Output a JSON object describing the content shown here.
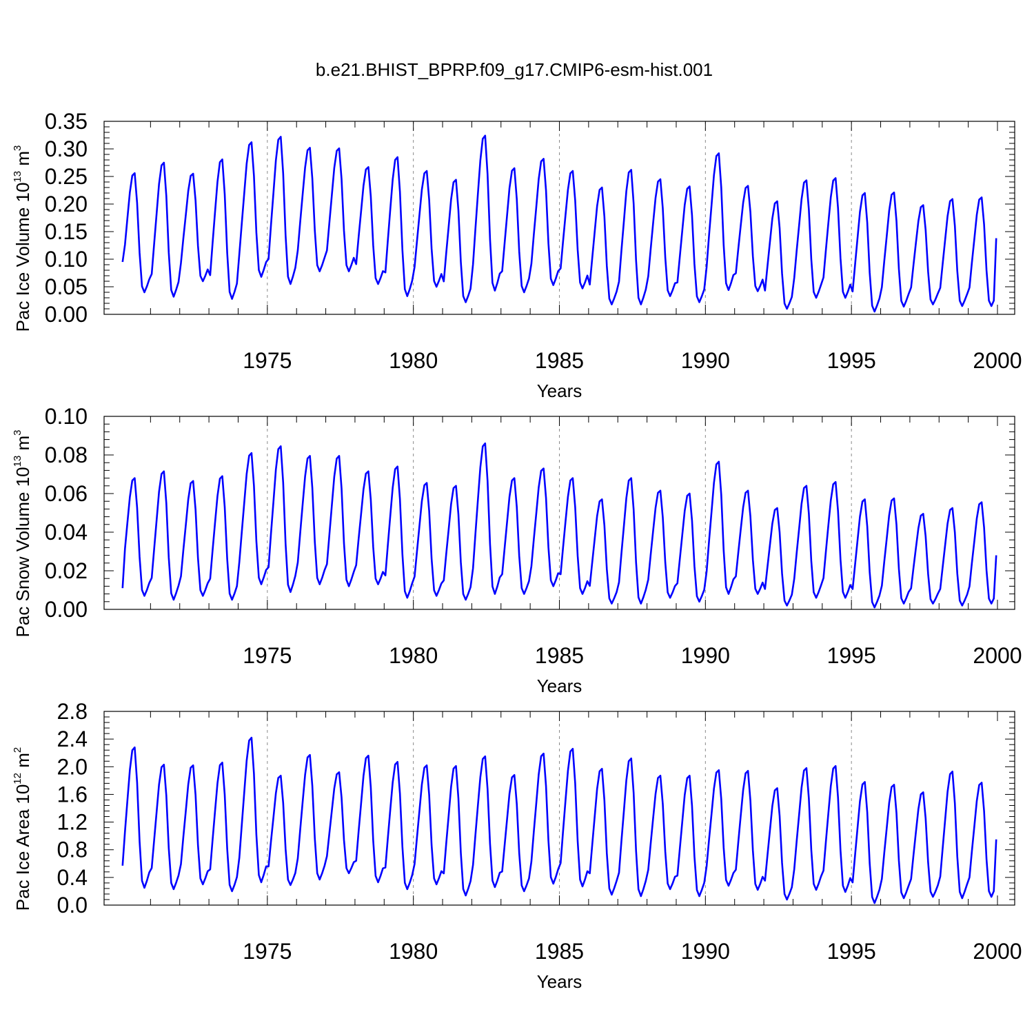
{
  "title": "b.e21.BHIST_BPRP.f09_g17.CMIP6-esm-hist.001",
  "chart_data": [
    {
      "type": "line",
      "ylabel_parts": [
        "Pac Ice Volume 10",
        "13",
        " m",
        "3"
      ],
      "xlabel": "Years",
      "xlim": [
        1970.0,
        2000.0
      ],
      "ylim": [
        0.0,
        0.35
      ],
      "yticks": [
        0.0,
        0.05,
        0.1,
        0.15,
        0.2,
        0.25,
        0.3,
        0.35
      ],
      "ytick_labels": [
        "0.00",
        "0.05",
        "0.10",
        "0.15",
        "0.20",
        "0.25",
        "0.30",
        "0.35"
      ],
      "xticks": [
        1975,
        1980,
        1985,
        1990,
        1995,
        2000
      ],
      "xtick_labels": [
        "1975",
        "1980",
        "1985",
        "1990",
        "1995",
        "2000"
      ],
      "line_color": "#0000ff",
      "series": [
        {
          "name": "Pac Ice Volume",
          "start_year": 1970.0,
          "annual_max": [
            0.256,
            0.275,
            0.255,
            0.281,
            0.312,
            0.322,
            0.302,
            0.301,
            0.267,
            0.285,
            0.26,
            0.244,
            0.324,
            0.265,
            0.282,
            0.26,
            0.23,
            0.262,
            0.245,
            0.232,
            0.292,
            0.233,
            0.205,
            0.243,
            0.247,
            0.22,
            0.221,
            0.198,
            0.209,
            0.212
          ],
          "annual_min": [
            0.04,
            0.032,
            0.06,
            0.028,
            0.068,
            0.055,
            0.078,
            0.078,
            0.055,
            0.033,
            0.05,
            0.022,
            0.043,
            0.04,
            0.053,
            0.047,
            0.018,
            0.018,
            0.033,
            0.022,
            0.044,
            0.042,
            0.01,
            0.03,
            0.03,
            0.005,
            0.014,
            0.018,
            0.015,
            0.015
          ],
          "start_value": 0.095,
          "end_value": 0.138
        }
      ]
    },
    {
      "type": "line",
      "ylabel_parts": [
        "Pac Snow Volume 10",
        "13",
        " m",
        "3"
      ],
      "xlabel": "Years",
      "xlim": [
        1970.0,
        2000.0
      ],
      "ylim": [
        0.0,
        0.1
      ],
      "yticks": [
        0.0,
        0.02,
        0.04,
        0.06,
        0.08,
        0.1
      ],
      "ytick_labels": [
        "0.00",
        "0.02",
        "0.04",
        "0.06",
        "0.08",
        "0.10"
      ],
      "xticks": [
        1975,
        1980,
        1985,
        1990,
        1995,
        2000
      ],
      "xtick_labels": [
        "1975",
        "1980",
        "1985",
        "1990",
        "1995",
        "2000"
      ],
      "line_color": "#0000ff",
      "series": [
        {
          "name": "Pac Snow Volume",
          "start_year": 1970.0,
          "annual_max": [
            0.068,
            0.0715,
            0.0665,
            0.069,
            0.081,
            0.0845,
            0.0795,
            0.0795,
            0.0715,
            0.074,
            0.0655,
            0.064,
            0.086,
            0.068,
            0.073,
            0.068,
            0.057,
            0.068,
            0.0615,
            0.06,
            0.0765,
            0.0615,
            0.0525,
            0.064,
            0.066,
            0.057,
            0.0575,
            0.0495,
            0.0525,
            0.0555
          ],
          "annual_min": [
            0.007,
            0.005,
            0.007,
            0.005,
            0.013,
            0.009,
            0.013,
            0.012,
            0.013,
            0.006,
            0.007,
            0.005,
            0.008,
            0.008,
            0.012,
            0.008,
            0.003,
            0.003,
            0.006,
            0.004,
            0.008,
            0.008,
            0.002,
            0.006,
            0.006,
            0.001,
            0.003,
            0.003,
            0.002,
            0.003
          ],
          "start_value": 0.011,
          "end_value": 0.028
        }
      ]
    },
    {
      "type": "line",
      "ylabel_parts": [
        "Pac Ice Area 10",
        "12",
        " m",
        "2"
      ],
      "xlabel": "Years",
      "xlim": [
        1970.0,
        2000.0
      ],
      "ylim": [
        0.0,
        2.8
      ],
      "yticks": [
        0.0,
        0.4,
        0.8,
        1.2,
        1.6,
        2.0,
        2.4,
        2.8
      ],
      "ytick_labels": [
        "0.0",
        "0.4",
        "0.8",
        "1.2",
        "1.6",
        "2.0",
        "2.4",
        "2.8"
      ],
      "xticks": [
        1975,
        1980,
        1985,
        1990,
        1995,
        2000
      ],
      "xtick_labels": [
        "1975",
        "1980",
        "1985",
        "1990",
        "1995",
        "2000"
      ],
      "line_color": "#0000ff",
      "series": [
        {
          "name": "Pac Ice Area",
          "start_year": 1970.0,
          "annual_max": [
            2.28,
            2.03,
            2.02,
            2.06,
            2.42,
            1.87,
            2.17,
            1.92,
            2.16,
            2.07,
            2.02,
            2.01,
            2.15,
            1.88,
            2.19,
            2.26,
            1.97,
            2.12,
            1.87,
            1.87,
            1.95,
            1.94,
            1.69,
            1.98,
            2.01,
            1.78,
            1.74,
            1.63,
            1.93,
            1.77
          ],
          "annual_min": [
            0.25,
            0.23,
            0.3,
            0.2,
            0.33,
            0.29,
            0.37,
            0.46,
            0.33,
            0.23,
            0.3,
            0.14,
            0.26,
            0.2,
            0.31,
            0.27,
            0.15,
            0.13,
            0.23,
            0.13,
            0.28,
            0.22,
            0.08,
            0.22,
            0.19,
            0.03,
            0.1,
            0.12,
            0.1,
            0.12
          ],
          "start_value": 0.57,
          "end_value": 0.95
        }
      ]
    }
  ]
}
